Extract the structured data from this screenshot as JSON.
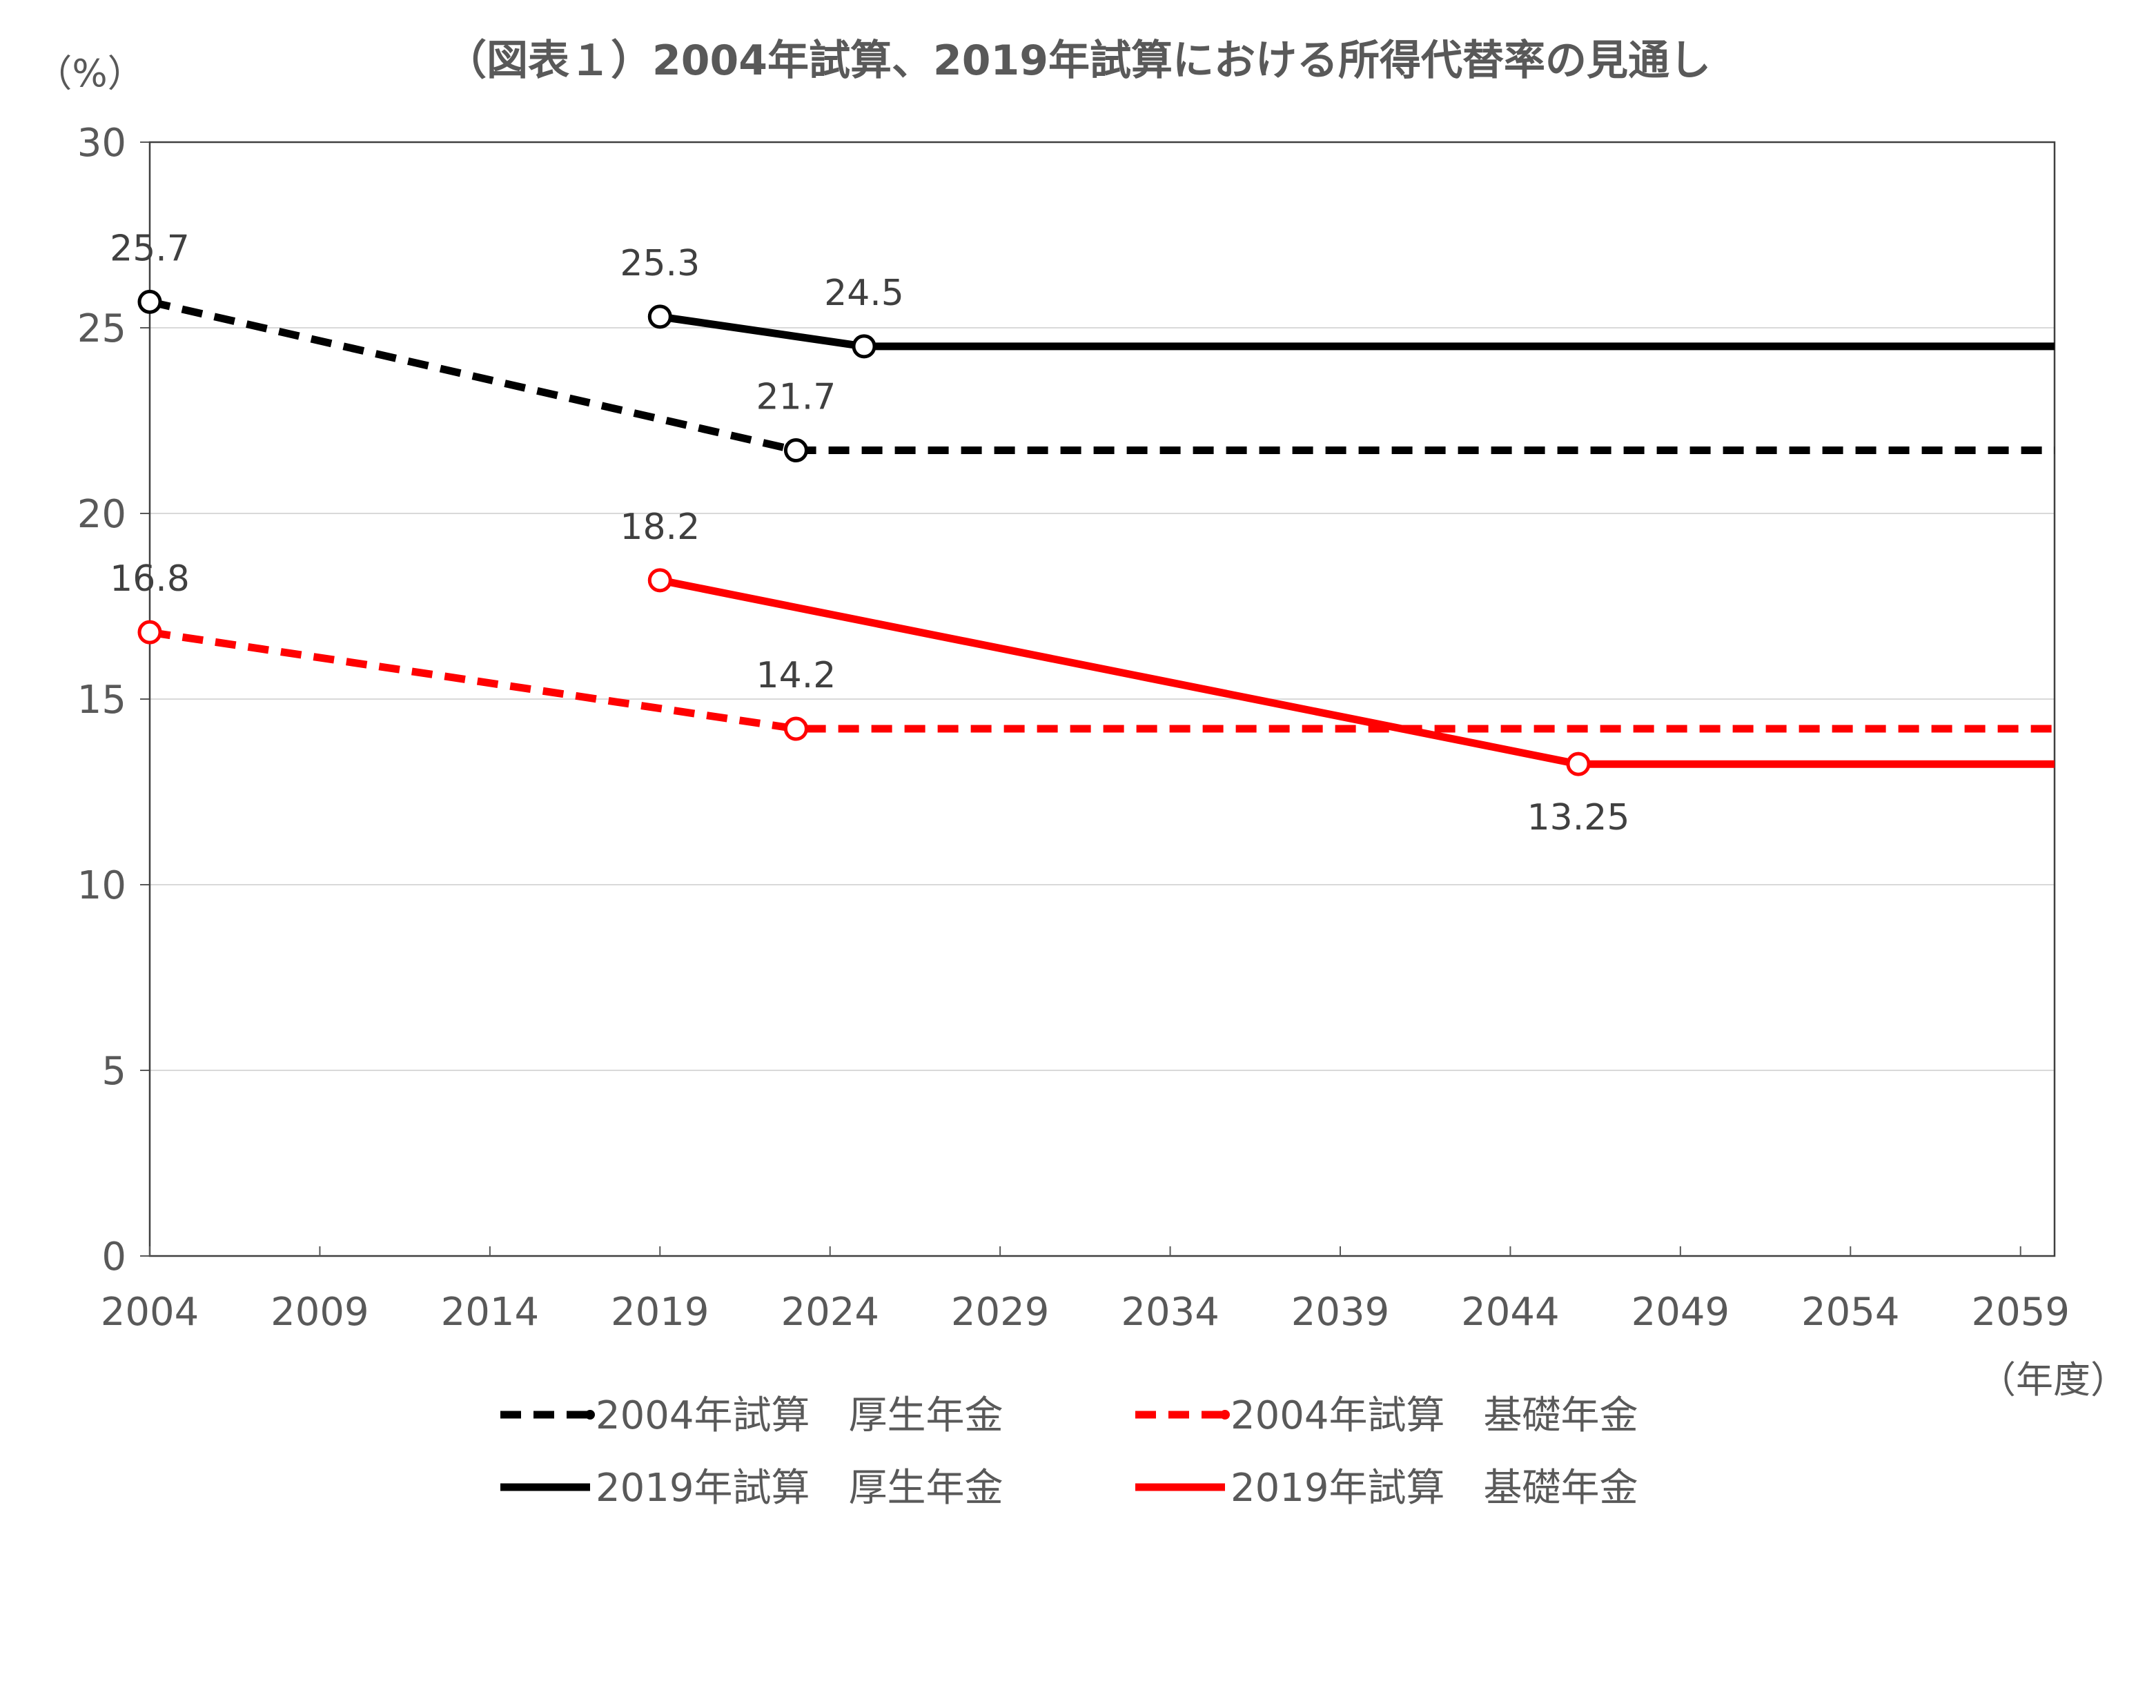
{
  "chart_data": {
    "type": "line",
    "title": "（図表１）2004年試算、2019年試算における所得代替率の見通し",
    "ylabel": "（%）",
    "xlabel": "（年度）",
    "ylim": [
      0,
      30
    ],
    "xlim": [
      2004,
      2060
    ],
    "yticks": [
      "0",
      "5",
      "10",
      "15",
      "20",
      "25",
      "30"
    ],
    "xticks": [
      "2004",
      "2009",
      "2014",
      "2019",
      "2024",
      "2029",
      "2034",
      "2039",
      "2044",
      "2049",
      "2054",
      "2059"
    ],
    "grid": true,
    "legend_position": "bottom",
    "series": [
      {
        "name": "2004年試算　厚生年金",
        "color": "#000000",
        "dash": true,
        "x": [
          2004,
          2023,
          2060
        ],
        "y": [
          25.7,
          21.7,
          21.7
        ],
        "markers": [
          0,
          1
        ],
        "labels": [
          {
            "i": 0,
            "text": "25.7",
            "pos": "above"
          },
          {
            "i": 1,
            "text": "21.7",
            "pos": "above"
          }
        ]
      },
      {
        "name": "2004年試算　基礎年金",
        "color": "#ff0000",
        "dash": true,
        "x": [
          2004,
          2023,
          2060
        ],
        "y": [
          16.8,
          14.2,
          14.2
        ],
        "markers": [
          0,
          1
        ],
        "labels": [
          {
            "i": 0,
            "text": "16.8",
            "pos": "above"
          },
          {
            "i": 1,
            "text": "14.2",
            "pos": "above"
          }
        ]
      },
      {
        "name": "2019年試算　厚生年金",
        "color": "#000000",
        "dash": false,
        "x": [
          2019,
          2025,
          2060
        ],
        "y": [
          25.3,
          24.5,
          24.5
        ],
        "markers": [
          0,
          1
        ],
        "labels": [
          {
            "i": 0,
            "text": "25.3",
            "pos": "above"
          },
          {
            "i": 1,
            "text": "24.5",
            "pos": "above"
          }
        ]
      },
      {
        "name": "2019年試算　基礎年金",
        "color": "#ff0000",
        "dash": false,
        "x": [
          2019,
          2046,
          2060
        ],
        "y": [
          18.2,
          13.25,
          13.25
        ],
        "markers": [
          0,
          1
        ],
        "labels": [
          {
            "i": 0,
            "text": "18.2",
            "pos": "above"
          },
          {
            "i": 1,
            "text": "13.25",
            "pos": "below"
          }
        ]
      }
    ]
  }
}
